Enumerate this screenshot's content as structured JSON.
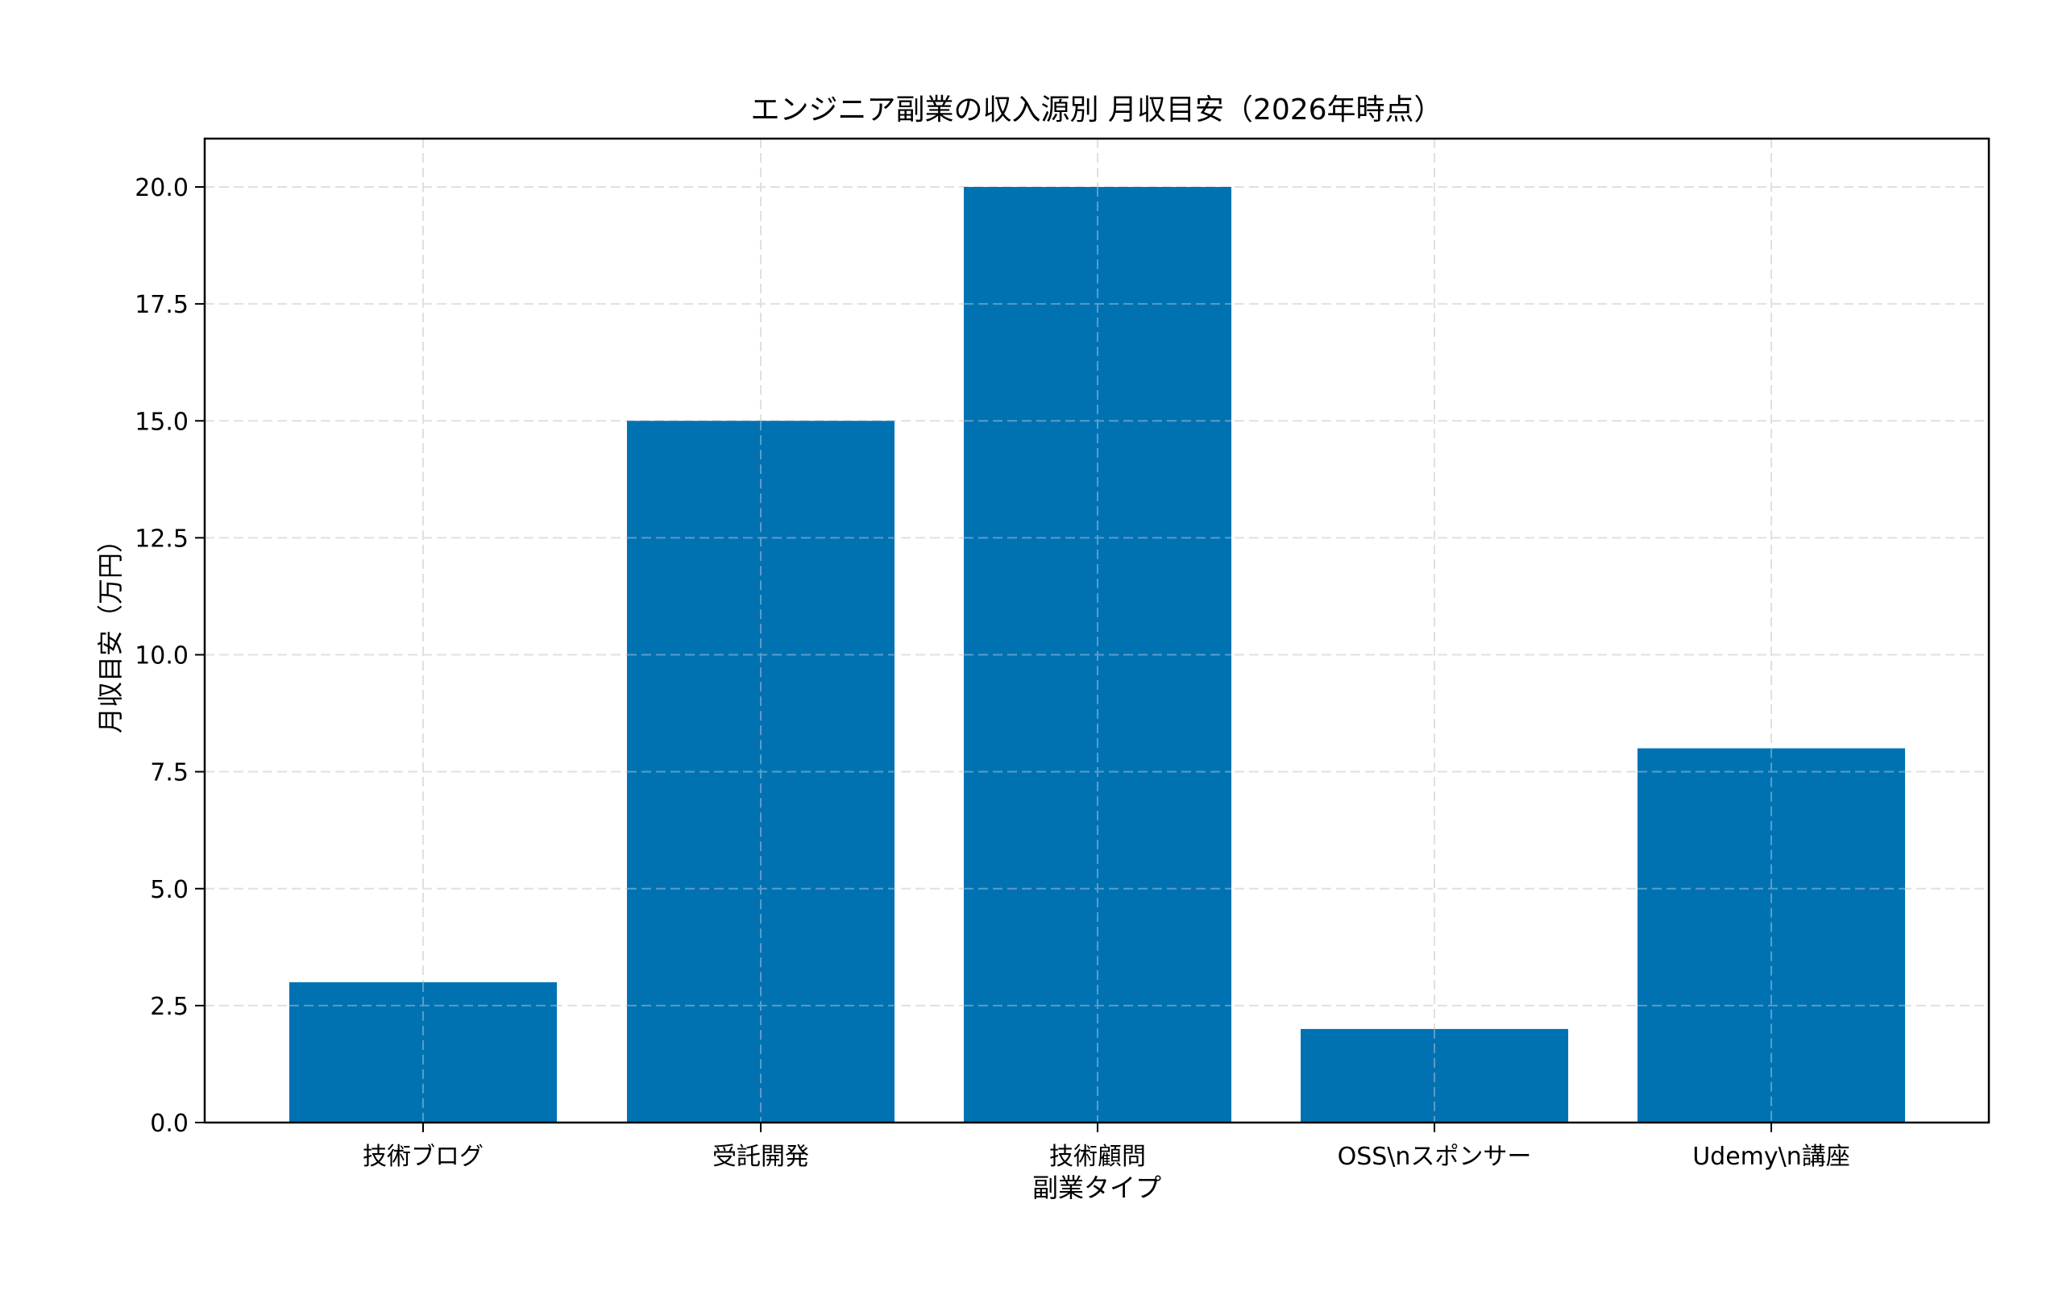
{
  "chart_data": {
    "type": "bar",
    "title": "エンジニア副業の収入源別 月収目安（2026年時点）",
    "xlabel": "副業タイプ",
    "ylabel": "月収目安（万円）",
    "categories": [
      "技術ブログ",
      "受託開発",
      "技術顧問",
      "OSS\\nスポンサー",
      "Udemy\\n講座"
    ],
    "values": [
      3,
      15,
      20,
      2,
      8
    ],
    "ylim": [
      0,
      21
    ],
    "yticks": [
      "0.0",
      "2.5",
      "5.0",
      "7.5",
      "10.0",
      "12.5",
      "15.0",
      "17.5",
      "20.0"
    ],
    "ytick_values": [
      0,
      2.5,
      5,
      7.5,
      10,
      12.5,
      15,
      17.5,
      20
    ],
    "grid": true,
    "grid_style": "dashed",
    "legend": null,
    "bar_color": "#0072B2"
  },
  "colors": {
    "bar": "#0072B2",
    "grid": "#e0e0e0",
    "axis": "#000000",
    "background": "#ffffff"
  }
}
